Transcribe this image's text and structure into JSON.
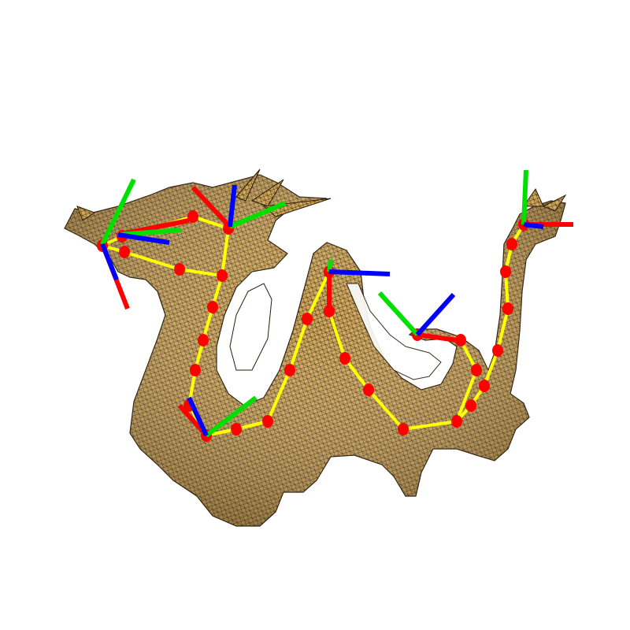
{
  "scene": {
    "subject": "dragon-mesh",
    "background_color": "#ffffff",
    "mesh_fill_color": "#d4a95a",
    "mesh_wire_color": "#1a1408",
    "skeleton_color": "#ffff00",
    "joint_color": "#ff0000",
    "axis_colors": {
      "x": "#ff0000",
      "y": "#00e000",
      "z": "#0000ff"
    },
    "joint_count": 31,
    "frame_count": 5
  }
}
